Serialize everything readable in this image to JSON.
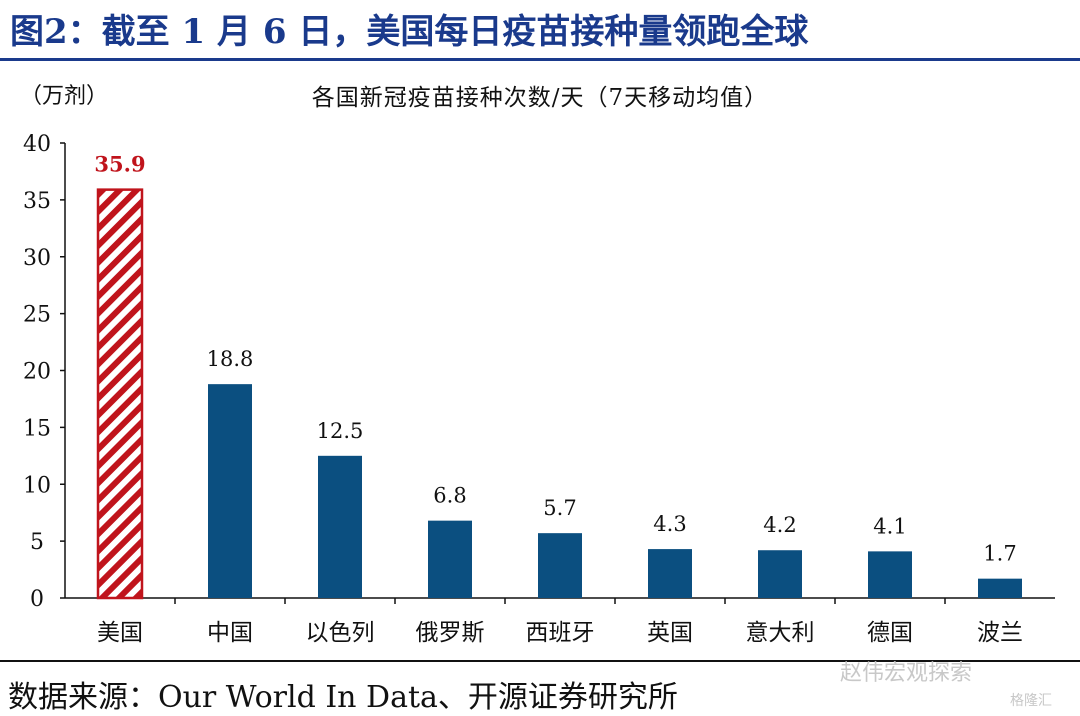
{
  "header": {
    "title": "图2：截至 1 月 6 日，美国每日疫苗接种量领跑全球"
  },
  "footer": {
    "source": "数据来源：Our World In Data、开源证券研究所",
    "watermark": "赵伟宏观探索",
    "watermark_small": "格隆汇"
  },
  "chart_data": {
    "type": "bar",
    "title": "各国新冠疫苗接种次数/天（7天移动均值）",
    "unit": "（万剂）",
    "categories": [
      "美国",
      "中国",
      "以色列",
      "俄罗斯",
      "西班牙",
      "英国",
      "意大利",
      "德国",
      "波兰"
    ],
    "values": [
      35.9,
      18.8,
      12.5,
      6.8,
      5.7,
      4.3,
      4.2,
      4.1,
      1.7
    ],
    "value_labels": [
      "35.9",
      "18.8",
      "12.5",
      "6.8",
      "5.7",
      "4.3",
      "4.2",
      "4.1",
      "1.7"
    ],
    "yticks": [
      "0",
      "5",
      "10",
      "15",
      "20",
      "25",
      "30",
      "35",
      "40"
    ],
    "ylim": [
      0,
      40
    ],
    "grid": false,
    "colors": {
      "bar": "#0b4f80",
      "highlight": "#c0141c"
    },
    "highlight_index": 0
  }
}
